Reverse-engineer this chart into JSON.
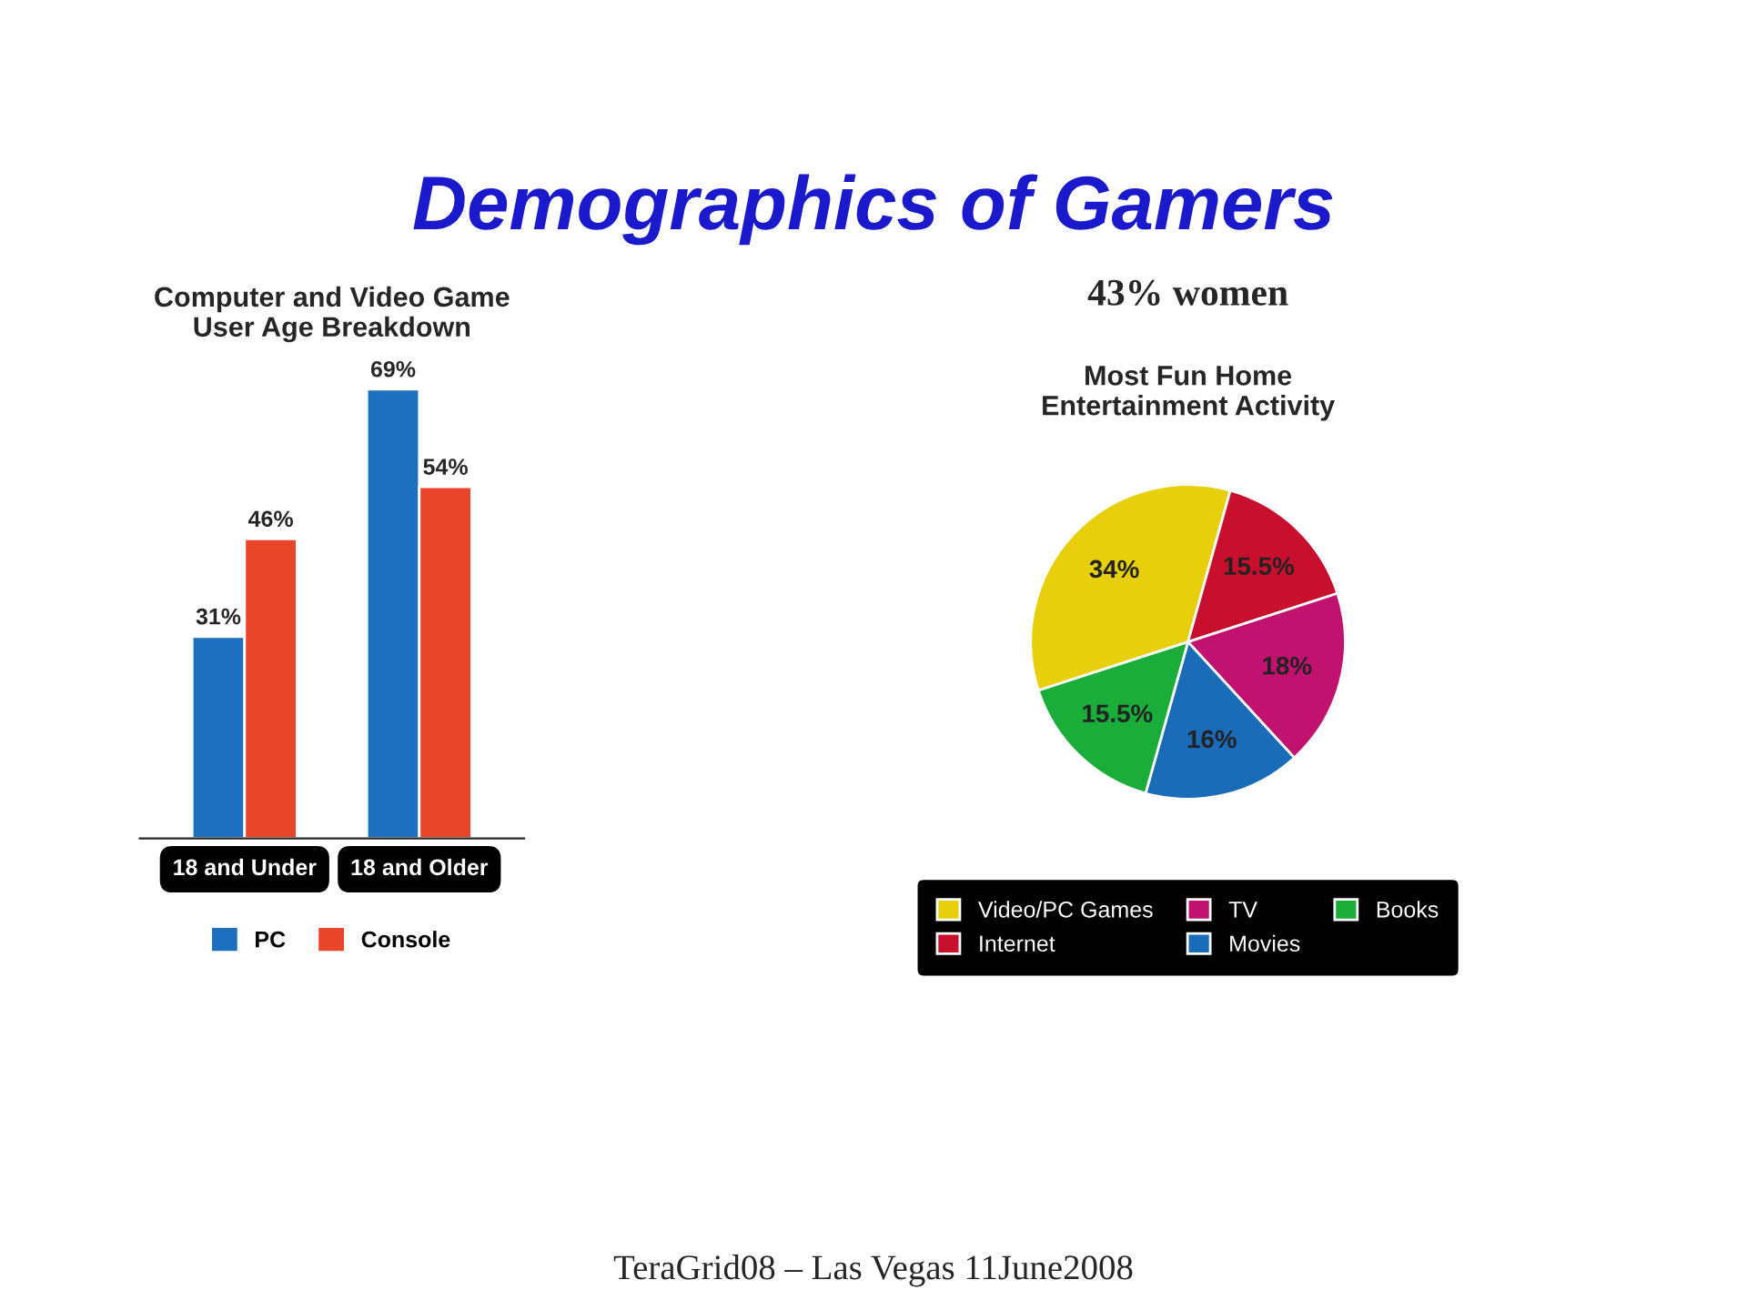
{
  "chart_data": [
    {
      "type": "bar",
      "title": "Computer and Video Game\nUser Age Breakdown",
      "categories": [
        "18 and Under",
        "18 and Older"
      ],
      "series": [
        {
          "name": "PC",
          "color": "#1f6fc0",
          "values": [
            31,
            69
          ],
          "value_labels": [
            "31%",
            "69%"
          ]
        },
        {
          "name": "Console",
          "color": "#e8452a",
          "values": [
            46,
            54
          ],
          "value_labels": [
            "46%",
            "54%"
          ]
        }
      ],
      "legend": "bottom",
      "annotations": [
        "Demographics of Gamers",
        "TeraGrid08 – Las Vegas 11June2008"
      ]
    },
    {
      "type": "pie",
      "title": "Most Fun Home\nEntertainment Activity",
      "categories": [
        "Video/PC Games",
        "Internet",
        "TV",
        "Movies",
        "Books"
      ],
      "values": [
        34,
        15.5,
        18,
        16,
        15.5
      ],
      "value_labels": [
        "34%",
        "15.5%",
        "18%",
        "16%",
        "15.5%"
      ],
      "colors": [
        "#e8cf0c",
        "#c8102e",
        "#c0126e",
        "#1a6bb8",
        "#1aad3a"
      ],
      "legend": "bottom",
      "annotations": [
        "43% women"
      ]
    }
  ]
}
